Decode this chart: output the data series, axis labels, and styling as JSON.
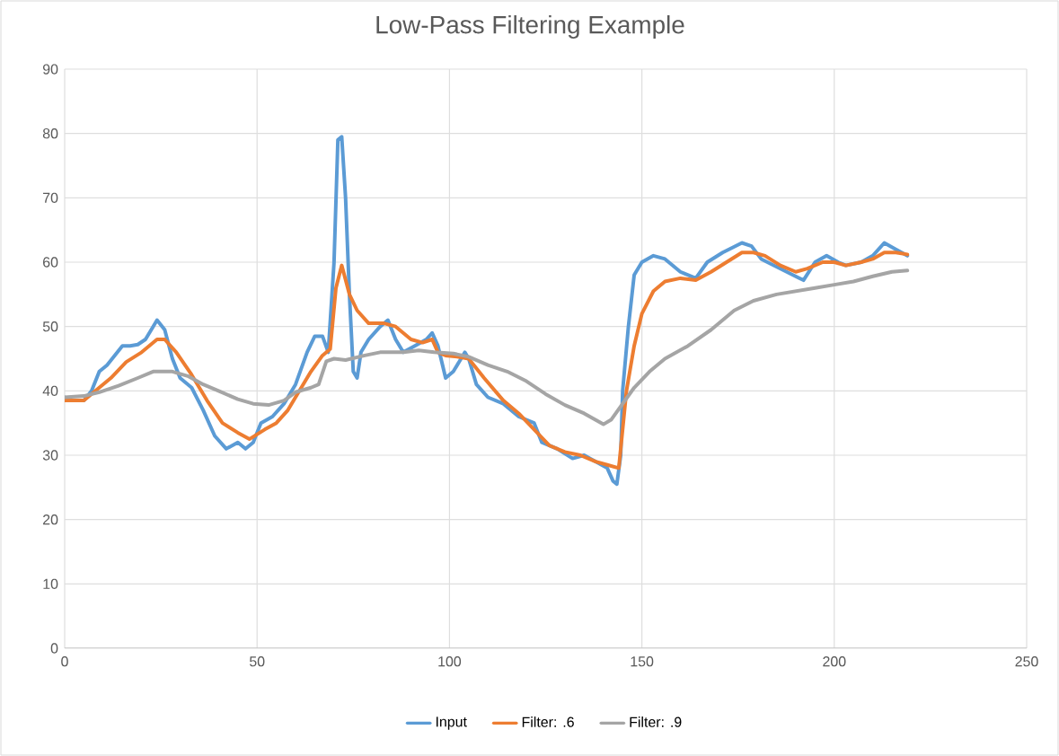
{
  "chart_data": {
    "type": "line",
    "title": "Low-Pass Filtering Example",
    "xlim": [
      0,
      250
    ],
    "xticks": [
      0,
      50,
      100,
      150,
      200,
      250
    ],
    "ylim": [
      0,
      90
    ],
    "yticks": [
      0,
      10,
      20,
      30,
      40,
      50,
      60,
      70,
      80,
      90
    ],
    "grid": true,
    "legend": "bottom",
    "marker": "none",
    "line_style": "solid",
    "series": [
      {
        "name": "Input",
        "color": "#5b9bd5",
        "x": [
          0,
          2,
          5,
          7,
          9,
          11,
          13,
          15,
          17,
          19,
          21,
          23,
          24,
          26,
          28,
          30,
          33,
          36,
          39,
          42,
          45,
          47,
          49,
          51,
          54,
          57,
          60,
          63,
          65,
          67,
          68.5,
          70,
          71,
          72,
          73,
          74,
          75,
          76,
          77,
          79,
          82,
          84,
          86,
          88,
          91,
          94,
          95.5,
          97,
          99,
          101,
          103,
          104,
          105,
          107,
          110,
          114,
          118,
          122,
          124,
          128,
          132,
          135,
          138,
          141,
          142.5,
          143.5,
          144.5,
          145,
          146.5,
          148,
          150,
          153,
          156,
          160,
          164,
          167,
          171,
          176,
          178.5,
          181,
          186,
          191,
          192,
          195,
          198,
          201,
          203,
          207,
          210,
          213,
          216,
          219
        ],
        "values": [
          39,
          38.5,
          38.5,
          40,
          43,
          44,
          45.5,
          47,
          47,
          47.2,
          48,
          50,
          51,
          49.5,
          45,
          42,
          40.5,
          37,
          33,
          31,
          32,
          31,
          32,
          35,
          36,
          38,
          41,
          46,
          48.5,
          48.5,
          46,
          60,
          79,
          79.5,
          70,
          55,
          43,
          42,
          46,
          48,
          50,
          51,
          48,
          46,
          47,
          48,
          49,
          47,
          42,
          43,
          45,
          46,
          45,
          41,
          39,
          38,
          36,
          35,
          32,
          31,
          29.5,
          30,
          29,
          28,
          26,
          25.5,
          30,
          40,
          50,
          58,
          60,
          61,
          60.5,
          58.5,
          57.5,
          60,
          61.5,
          63,
          62.5,
          60.5,
          59,
          57.5,
          57.2,
          60,
          61,
          60,
          59.5,
          60,
          61,
          63,
          62,
          61
        ]
      },
      {
        "name": "Filter: .6",
        "color": "#ed7d31",
        "x": [
          0,
          5,
          8,
          12,
          16,
          20,
          24,
          26,
          29,
          33,
          37,
          41,
          45,
          48,
          52,
          55,
          58,
          61,
          64,
          67,
          69,
          70.5,
          72,
          74,
          76,
          79,
          83,
          86,
          90,
          93,
          95.5,
          97,
          99,
          102,
          105,
          109,
          114,
          118,
          122,
          126,
          130,
          134,
          138,
          141,
          144,
          146,
          148,
          150,
          153,
          156,
          160,
          164,
          168,
          172,
          176,
          179,
          182,
          186,
          190,
          193,
          197,
          200,
          203,
          207,
          210,
          213,
          216,
          219
        ],
        "values": [
          38.5,
          38.5,
          40,
          42,
          44.5,
          46,
          48,
          48,
          46,
          42.5,
          38.5,
          35,
          33.5,
          32.5,
          34,
          35,
          37,
          40,
          43,
          45.5,
          46.5,
          56,
          59.5,
          55,
          52.5,
          50.5,
          50.5,
          50,
          48,
          47.5,
          48,
          46,
          45.5,
          45.3,
          45,
          42,
          38.5,
          36.5,
          34,
          31.5,
          30.5,
          30,
          29,
          28.5,
          28,
          40,
          47,
          52,
          55.5,
          57,
          57.5,
          57.2,
          58.5,
          60,
          61.5,
          61.5,
          61,
          59.5,
          58.5,
          59,
          60,
          60,
          59.5,
          60,
          60.5,
          61.5,
          61.5,
          61.2
        ]
      },
      {
        "name": "Filter: .9",
        "color": "#a5a5a5",
        "x": [
          0,
          5,
          9,
          14,
          19,
          23,
          28,
          32,
          36,
          40,
          45,
          49,
          53,
          57,
          60,
          64,
          66,
          68,
          70,
          73,
          78,
          82,
          88,
          92,
          96,
          101,
          105,
          110,
          115,
          120,
          125,
          130,
          135,
          140,
          142,
          145,
          148,
          152,
          156,
          162,
          168,
          174,
          179,
          185,
          190,
          195,
          200,
          205,
          210,
          215,
          219
        ],
        "values": [
          39,
          39.2,
          39.8,
          40.8,
          42,
          43,
          43,
          42.3,
          41,
          40,
          38.7,
          38,
          37.8,
          38.5,
          39.8,
          40.5,
          41,
          44.6,
          45,
          44.8,
          45.5,
          46,
          46,
          46.3,
          46,
          45.8,
          45.3,
          44,
          43,
          41.5,
          39.5,
          37.8,
          36.5,
          34.8,
          35.5,
          38,
          40.5,
          43,
          45,
          47,
          49.5,
          52.5,
          54,
          55,
          55.5,
          56,
          56.5,
          57,
          57.8,
          58.5,
          58.7
        ]
      }
    ]
  }
}
